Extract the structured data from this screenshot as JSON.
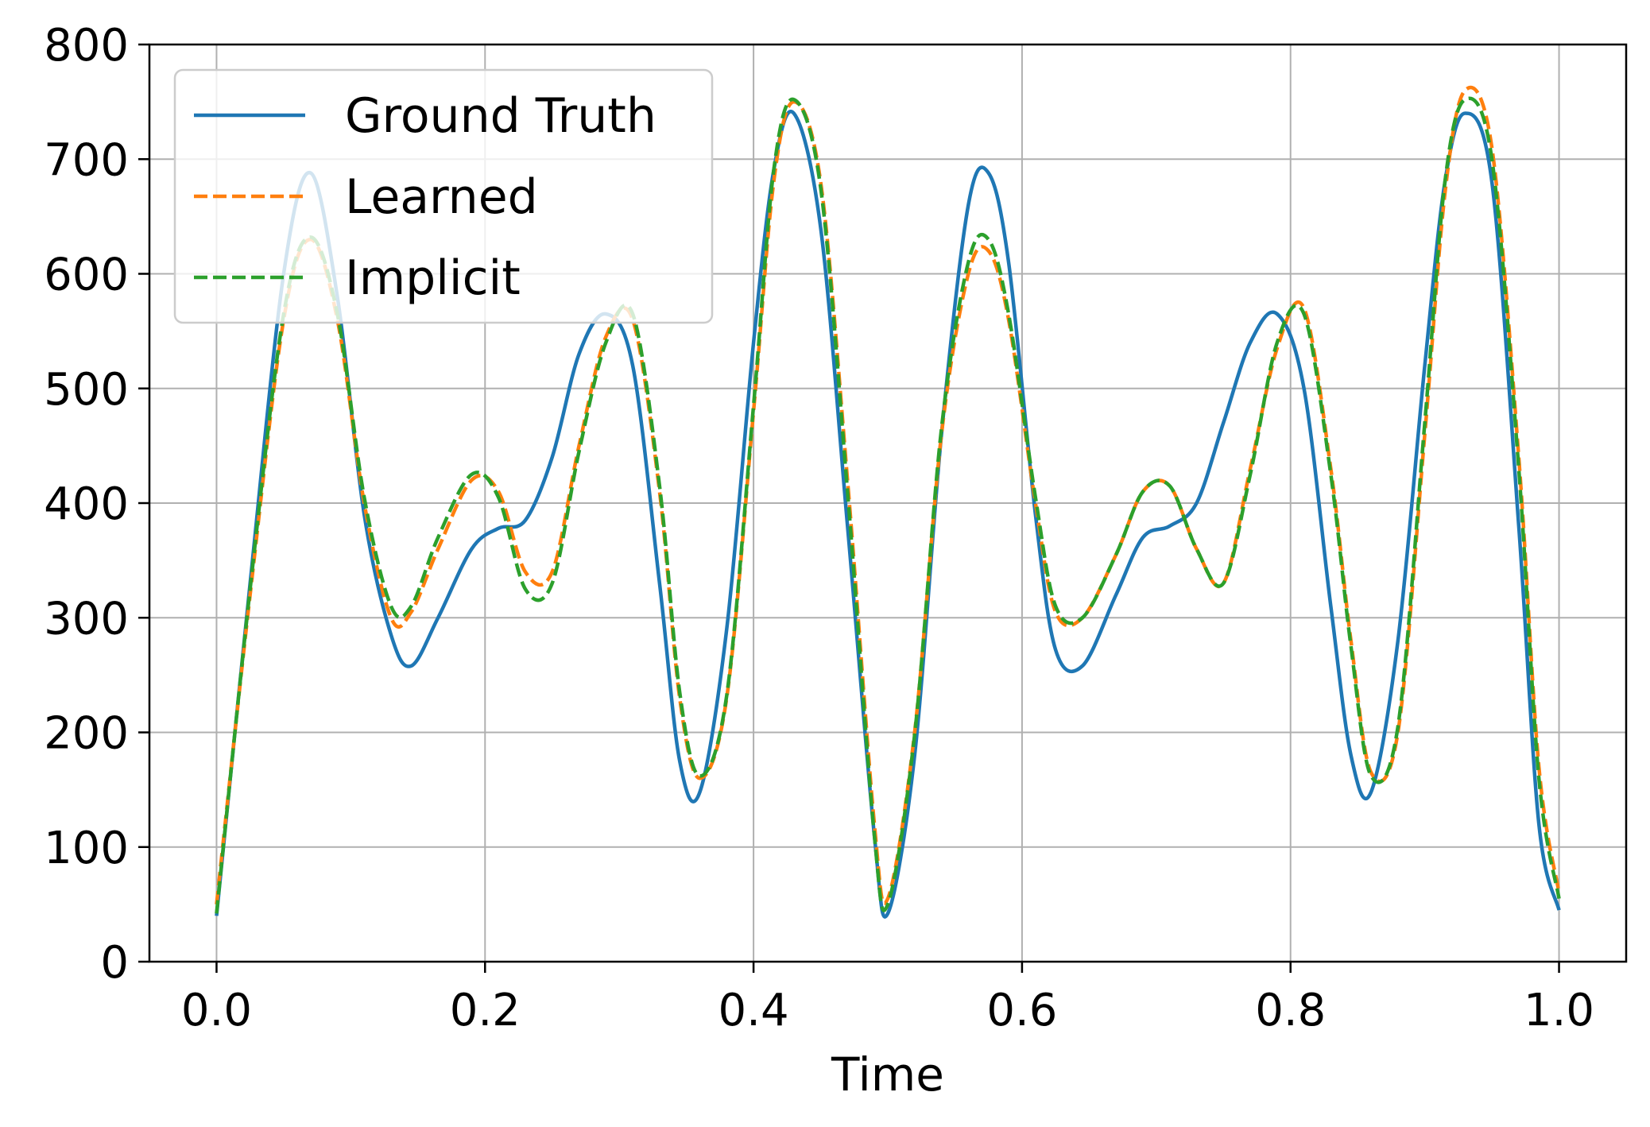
{
  "chart_data": {
    "type": "line",
    "title": "",
    "xlabel": "Time",
    "ylabel": "",
    "xlim": [
      -0.05,
      1.05
    ],
    "ylim": [
      0,
      800
    ],
    "x_ticks": [
      "0.0",
      "0.2",
      "0.4",
      "0.6",
      "0.8",
      "1.0"
    ],
    "y_ticks": [
      "0",
      "100",
      "200",
      "300",
      "400",
      "500",
      "600",
      "700",
      "800"
    ],
    "grid": true,
    "legend_position": "top-left",
    "x": [
      0.0,
      0.025,
      0.05,
      0.07,
      0.09,
      0.11,
      0.13,
      0.145,
      0.165,
      0.19,
      0.21,
      0.23,
      0.25,
      0.27,
      0.29,
      0.31,
      0.33,
      0.345,
      0.36,
      0.38,
      0.4,
      0.415,
      0.43,
      0.45,
      0.47,
      0.49,
      0.5,
      0.52,
      0.54,
      0.56,
      0.575,
      0.59,
      0.61,
      0.625,
      0.645,
      0.67,
      0.69,
      0.71,
      0.73,
      0.75,
      0.77,
      0.79,
      0.81,
      0.83,
      0.845,
      0.86,
      0.88,
      0.9,
      0.915,
      0.93,
      0.95,
      0.97,
      0.985,
      1.0
    ],
    "series": [
      {
        "name": "Ground Truth",
        "color": "#1f77b4",
        "style": "solid",
        "values": [
          40,
          330,
          600,
          688,
          580,
          390,
          285,
          258,
          300,
          360,
          378,
          385,
          440,
          530,
          565,
          520,
          330,
          175,
          148,
          290,
          540,
          690,
          740,
          640,
          380,
          110,
          42,
          180,
          460,
          660,
          688,
          610,
          390,
          272,
          258,
          320,
          370,
          380,
          400,
          470,
          540,
          565,
          500,
          310,
          180,
          148,
          280,
          520,
          680,
          740,
          680,
          380,
          120,
          45
        ]
      },
      {
        "name": "Learned",
        "color": "#ff7f0e",
        "style": "dashed",
        "values": [
          50,
          320,
          560,
          630,
          560,
          400,
          300,
          305,
          360,
          420,
          410,
          340,
          340,
          450,
          545,
          560,
          410,
          230,
          160,
          230,
          480,
          680,
          750,
          680,
          420,
          120,
          55,
          200,
          460,
          600,
          620,
          560,
          400,
          305,
          300,
          355,
          410,
          415,
          360,
          330,
          430,
          535,
          570,
          430,
          280,
          165,
          200,
          460,
          670,
          760,
          710,
          440,
          170,
          60
        ]
      },
      {
        "name": "Implicit",
        "color": "#2ca02c",
        "style": "dashed",
        "values": [
          42,
          325,
          565,
          632,
          565,
          405,
          310,
          310,
          370,
          425,
          405,
          325,
          330,
          445,
          540,
          565,
          415,
          235,
          162,
          232,
          485,
          690,
          752,
          675,
          410,
          110,
          50,
          198,
          465,
          610,
          630,
          565,
          405,
          310,
          300,
          355,
          410,
          415,
          360,
          330,
          425,
          540,
          565,
          425,
          275,
          162,
          205,
          470,
          680,
          752,
          700,
          430,
          160,
          55
        ]
      }
    ]
  }
}
